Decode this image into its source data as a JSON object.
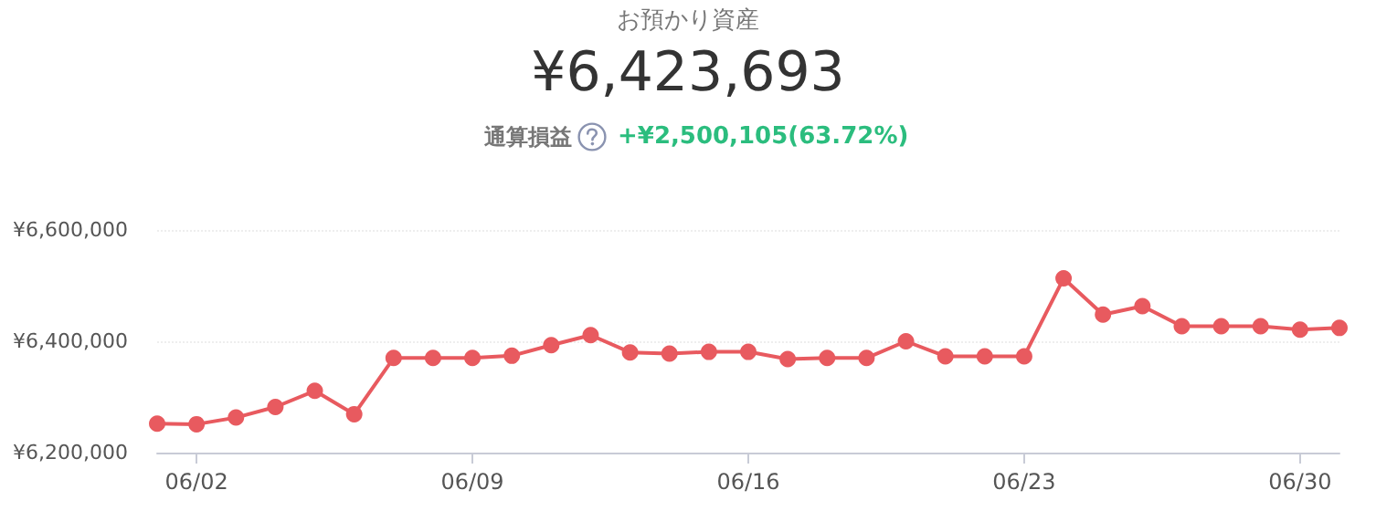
{
  "chart_data": {
    "type": "line",
    "title": "お預かり資産",
    "subtitle": "¥6,423,693",
    "annotations": [
      "通算損益",
      "+¥2,500,105(63.72%)"
    ],
    "categories": [
      null,
      "06/02",
      null,
      null,
      null,
      null,
      null,
      null,
      "06/09",
      null,
      null,
      null,
      null,
      null,
      null,
      "06/16",
      null,
      null,
      null,
      null,
      null,
      null,
      "06/23",
      null,
      null,
      null,
      null,
      null,
      null,
      "06/30",
      null
    ],
    "series": [
      {
        "color": "#e85a5f",
        "values": [
          6252000,
          6251000,
          6263000,
          6282000,
          6311000,
          6269000,
          6370000,
          6370000,
          6370000,
          6374000,
          6393000,
          6411000,
          6380000,
          6378000,
          6381000,
          6381000,
          6368000,
          6370000,
          6370000,
          6400000,
          6373000,
          6373000,
          6373000,
          6513000,
          6448000,
          6463000,
          6427000,
          6427000,
          6427000,
          6421000,
          6424000
        ]
      }
    ],
    "ylim": [
      6200000,
      6600000
    ],
    "yticks": [
      {
        "value": 6200000,
        "label": "¥6,200,000"
      },
      {
        "value": 6400000,
        "label": "¥6,400,000"
      },
      {
        "value": 6600000,
        "label": "¥6,600,000"
      }
    ],
    "grid": "y",
    "marker": "circle",
    "line_style": "solid"
  }
}
